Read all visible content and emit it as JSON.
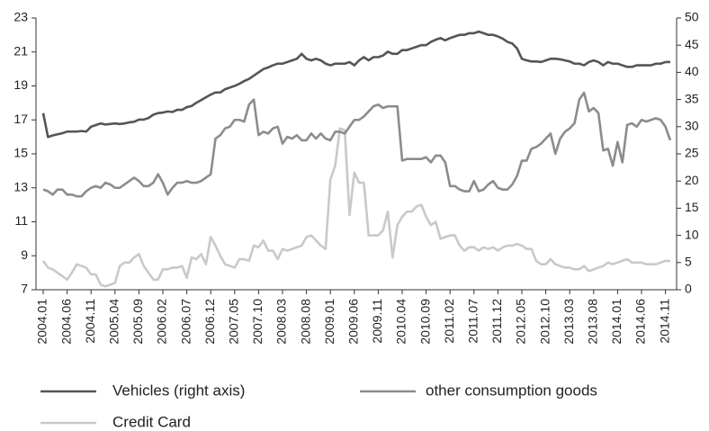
{
  "chart_data": {
    "type": "line",
    "categories": [
      "2004.01",
      null,
      null,
      null,
      null,
      "2004.06",
      null,
      null,
      null,
      null,
      "2004.11",
      null,
      null,
      null,
      null,
      "2005.04",
      null,
      null,
      null,
      null,
      "2005.09",
      null,
      null,
      null,
      null,
      "2006.02",
      null,
      null,
      null,
      null,
      "2006.07",
      null,
      null,
      null,
      null,
      "2006.12",
      null,
      null,
      null,
      null,
      "2007.05",
      null,
      null,
      null,
      null,
      "2007.10",
      null,
      null,
      null,
      null,
      "2008.03",
      null,
      null,
      null,
      null,
      "2008.08",
      null,
      null,
      null,
      null,
      "2009.01",
      null,
      null,
      null,
      null,
      "2009.06",
      null,
      null,
      null,
      null,
      "2009.11",
      null,
      null,
      null,
      null,
      "2010.04",
      null,
      null,
      null,
      null,
      "2010.09",
      null,
      null,
      null,
      null,
      "2011.02",
      null,
      null,
      null,
      null,
      "2011.07",
      null,
      null,
      null,
      null,
      "2011.12",
      null,
      null,
      null,
      null,
      "2012.05",
      null,
      null,
      null,
      null,
      "2012.10",
      null,
      null,
      null,
      null,
      "2013.03",
      null,
      null,
      null,
      null,
      "2013.08",
      null,
      null,
      null,
      null,
      "2014.01",
      null,
      null,
      null,
      null,
      "2014.06",
      null,
      null,
      null,
      null,
      "2014.11",
      null
    ],
    "series": [
      {
        "name": "Vehicles (right axis)",
        "color": "#555555",
        "axis": "y2",
        "values": [
          32.5,
          28.1,
          28.4,
          28.6,
          28.8,
          29.1,
          29.1,
          29.1,
          29.2,
          29.1,
          30.0,
          30.3,
          30.6,
          30.4,
          30.5,
          30.6,
          30.5,
          30.6,
          30.8,
          30.9,
          31.3,
          31.3,
          31.6,
          32.2,
          32.5,
          32.6,
          32.8,
          32.7,
          33.1,
          33.1,
          33.6,
          33.8,
          34.4,
          34.9,
          35.4,
          35.9,
          36.3,
          36.3,
          36.9,
          37.2,
          37.5,
          37.9,
          38.4,
          38.8,
          39.4,
          40.0,
          40.6,
          40.9,
          41.3,
          41.6,
          41.6,
          41.9,
          42.2,
          42.5,
          43.4,
          42.5,
          42.2,
          42.5,
          42.2,
          41.6,
          41.3,
          41.6,
          41.6,
          41.6,
          41.9,
          41.3,
          42.2,
          42.8,
          42.2,
          42.8,
          42.8,
          43.1,
          43.8,
          43.4,
          43.4,
          44.1,
          44.1,
          44.4,
          44.7,
          45.0,
          45.0,
          45.6,
          46.0,
          46.3,
          45.9,
          46.3,
          46.6,
          46.9,
          46.9,
          47.2,
          47.2,
          47.5,
          47.2,
          46.9,
          46.9,
          46.6,
          46.2,
          45.6,
          45.3,
          44.4,
          42.5,
          42.2,
          42.0,
          42.0,
          41.9,
          42.2,
          42.5,
          42.5,
          42.4,
          42.2,
          42.0,
          41.6,
          41.6,
          41.3,
          41.9,
          42.2,
          41.9,
          41.3,
          41.9,
          41.6,
          41.6,
          41.3,
          41.0,
          41.0,
          41.3,
          41.3,
          41.3,
          41.3,
          41.6,
          41.6,
          41.9,
          41.9
        ]
      },
      {
        "name": "other consumption goods",
        "color": "#8c8c8c",
        "values": [
          12.9,
          12.8,
          12.6,
          12.9,
          12.9,
          12.6,
          12.6,
          12.5,
          12.5,
          12.8,
          13.0,
          13.1,
          13.0,
          13.3,
          13.2,
          13.0,
          13.0,
          13.2,
          13.4,
          13.6,
          13.4,
          13.1,
          13.1,
          13.3,
          13.8,
          13.3,
          12.6,
          13.0,
          13.3,
          13.3,
          13.4,
          13.3,
          13.3,
          13.4,
          13.6,
          13.8,
          15.9,
          16.1,
          16.5,
          16.6,
          17.0,
          17.0,
          16.9,
          17.9,
          18.2,
          16.1,
          16.3,
          16.2,
          16.5,
          16.6,
          15.6,
          16.0,
          15.9,
          16.1,
          15.8,
          15.8,
          16.2,
          15.9,
          16.2,
          15.9,
          15.8,
          16.3,
          16.3,
          16.2,
          16.6,
          17.0,
          17.0,
          17.2,
          17.5,
          17.8,
          17.9,
          17.7,
          17.8,
          17.8,
          17.8,
          14.6,
          14.7,
          14.7,
          14.7,
          14.7,
          14.8,
          14.5,
          14.9,
          14.9,
          14.5,
          13.1,
          13.1,
          12.9,
          12.8,
          12.8,
          13.4,
          12.8,
          12.9,
          13.2,
          13.4,
          13.0,
          12.9,
          12.9,
          13.2,
          13.7,
          14.6,
          14.6,
          15.3,
          15.4,
          15.6,
          15.9,
          16.2,
          15.0,
          15.9,
          16.3,
          16.5,
          16.8,
          18.2,
          18.6,
          17.5,
          17.7,
          17.4,
          15.2,
          15.3,
          14.3,
          15.7,
          14.5,
          16.7,
          16.8,
          16.6,
          17.0,
          16.9,
          17.0,
          17.1,
          17.0,
          16.6,
          15.8
        ]
      },
      {
        "name": "Credit Card",
        "color": "#c9c9c9",
        "values": [
          8.7,
          8.3,
          8.2,
          8.0,
          7.8,
          7.6,
          8.0,
          8.5,
          8.4,
          8.3,
          7.9,
          7.9,
          7.3,
          7.2,
          7.3,
          7.4,
          8.4,
          8.6,
          8.6,
          8.9,
          9.1,
          8.4,
          8.0,
          7.6,
          7.6,
          8.2,
          8.2,
          8.3,
          8.3,
          8.4,
          7.7,
          8.9,
          8.8,
          9.1,
          8.5,
          10.1,
          9.6,
          9.0,
          8.5,
          8.4,
          8.3,
          8.8,
          8.8,
          8.7,
          9.6,
          9.5,
          9.9,
          9.3,
          9.3,
          8.8,
          9.4,
          9.3,
          9.4,
          9.5,
          9.6,
          10.1,
          10.2,
          9.9,
          9.6,
          9.4,
          13.5,
          14.3,
          16.5,
          16.4,
          11.4,
          13.9,
          13.3,
          13.3,
          10.2,
          10.2,
          10.2,
          10.5,
          11.6,
          8.9,
          10.8,
          11.3,
          11.6,
          11.6,
          11.9,
          12.0,
          11.3,
          10.8,
          11.0,
          10.0,
          10.1,
          10.2,
          10.2,
          9.6,
          9.3,
          9.5,
          9.5,
          9.3,
          9.5,
          9.4,
          9.5,
          9.3,
          9.5,
          9.6,
          9.6,
          9.7,
          9.6,
          9.4,
          9.4,
          8.7,
          8.5,
          8.5,
          8.8,
          8.5,
          8.4,
          8.3,
          8.3,
          8.2,
          8.2,
          8.4,
          8.1,
          8.2,
          8.3,
          8.4,
          8.6,
          8.5,
          8.6,
          8.7,
          8.8,
          8.6,
          8.6,
          8.6,
          8.5,
          8.5,
          8.5,
          8.6,
          8.7,
          8.7
        ]
      }
    ],
    "ylim": [
      7,
      23
    ],
    "yticks": [
      7,
      9,
      11,
      13,
      15,
      17,
      19,
      21,
      23
    ],
    "y2lim": [
      0,
      50
    ],
    "y2ticks": [
      0,
      5,
      10,
      15,
      20,
      25,
      30,
      35,
      40,
      45,
      50
    ],
    "grid": false,
    "legend": "bottom"
  }
}
